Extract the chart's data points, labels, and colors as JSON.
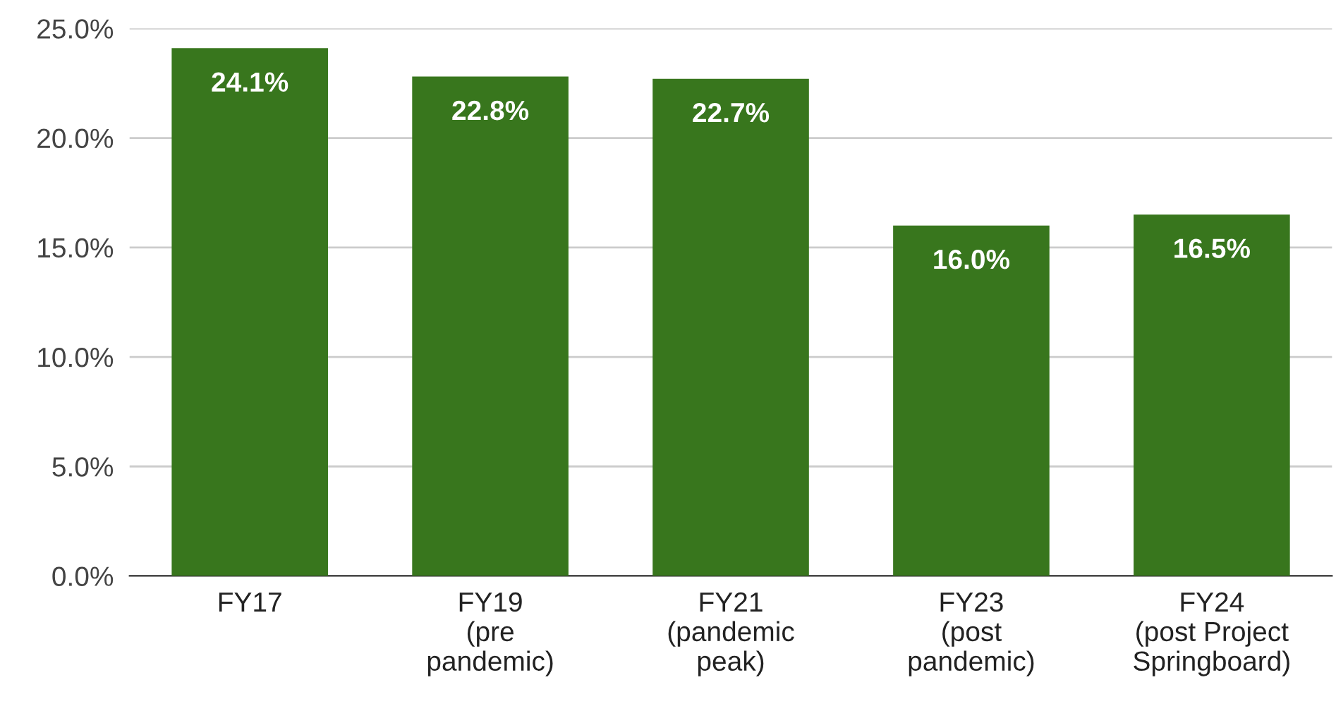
{
  "chart_data": {
    "type": "bar",
    "categories": [
      "FY17",
      "FY19\n(pre\npandemic)",
      "FY21\n(pandemic\npeak)",
      "FY23\n(post\npandemic)",
      "FY24\n(post Project\nSpringboard)"
    ],
    "values": [
      24.1,
      22.8,
      22.7,
      16.0,
      16.5
    ],
    "value_labels": [
      "24.1%",
      "22.8%",
      "22.7%",
      "16.0%",
      "16.5%"
    ],
    "color": "#38761d",
    "ylim": [
      0,
      25
    ],
    "yticks": [
      {
        "value": 0,
        "label": "0.0%"
      },
      {
        "value": 5,
        "label": "5.0%"
      },
      {
        "value": 10,
        "label": "10.0%"
      },
      {
        "value": 15,
        "label": "15.0%"
      },
      {
        "value": 20,
        "label": "20.0%"
      },
      {
        "value": 25,
        "label": "25.0%"
      }
    ],
    "grid": "y"
  }
}
